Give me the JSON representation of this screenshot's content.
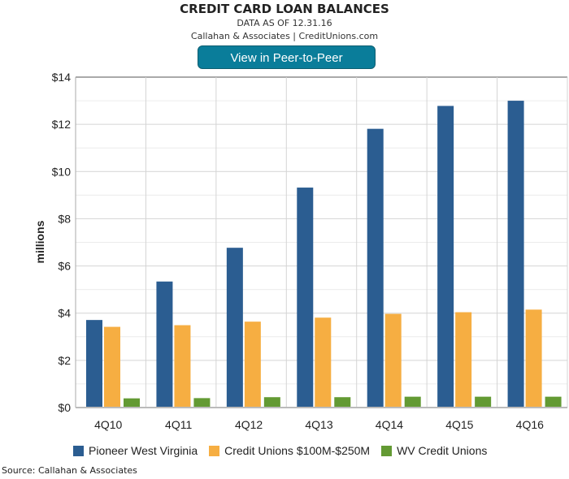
{
  "header": {
    "title": "CREDIT CARD LOAN BALANCES",
    "data_as_of": "DATA AS OF 12.31.16",
    "attribution": "Callahan & Associates | CreditUnions.com",
    "button_label": "View in Peer-to-Peer"
  },
  "footer": {
    "source": "Source: Callahan & Associates"
  },
  "chart_data": {
    "type": "bar",
    "title": "CREDIT CARD LOAN BALANCES",
    "xlabel": "",
    "ylabel": "millions",
    "ylim": [
      0,
      14
    ],
    "yticks": [
      0,
      2,
      4,
      6,
      8,
      10,
      12,
      14
    ],
    "ytick_labels": [
      "$0",
      "$2",
      "$4",
      "$6",
      "$8",
      "$10",
      "$12",
      "$14"
    ],
    "grid": true,
    "legend_position": "bottom",
    "categories": [
      "4Q10",
      "4Q11",
      "4Q12",
      "4Q13",
      "4Q14",
      "4Q15",
      "4Q16"
    ],
    "series": [
      {
        "name": "Pioneer West Virginia",
        "color": "#2b5d91",
        "values": [
          3.71,
          5.34,
          6.77,
          9.32,
          11.81,
          12.78,
          13.0
        ]
      },
      {
        "name": "Credit Unions $100M-$250M",
        "color": "#f6ae42",
        "values": [
          3.42,
          3.49,
          3.64,
          3.81,
          3.97,
          4.04,
          4.15
        ]
      },
      {
        "name": "WV Credit Unions",
        "color": "#639a33",
        "values": [
          0.39,
          0.4,
          0.44,
          0.44,
          0.46,
          0.46,
          0.46
        ]
      }
    ]
  }
}
